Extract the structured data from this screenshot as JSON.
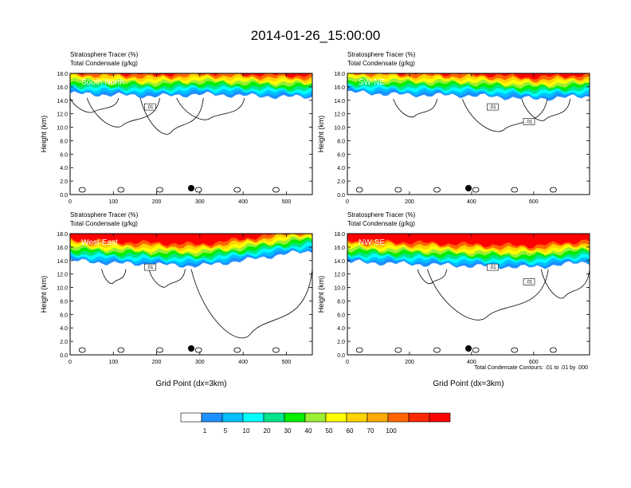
{
  "figure": {
    "title": "2014-01-26_15:00:00",
    "footnote": "Total Condensate Contours: .01 to .01 by .000"
  },
  "colorbar": {
    "labels": [
      "1",
      "5",
      "10",
      "20",
      "30",
      "40",
      "50",
      "60",
      "70",
      "100"
    ],
    "colors": [
      "#ffffff",
      "#1e90ff",
      "#00bfff",
      "#00ffff",
      "#00e58a",
      "#00ee00",
      "#9aee33",
      "#ffff00",
      "#ffd200",
      "#ffaa00",
      "#ff6400",
      "#ff2800",
      "#ff0000"
    ]
  },
  "chart_data": [
    {
      "type": "heatmap",
      "label": "South-North",
      "title_line1": "Stratosphere Tracer   (%)",
      "title_line2": "Total Condensate   (g/kg)",
      "ylabel": "Height (km)",
      "xlabel": "",
      "ylim": [
        0,
        18
      ],
      "xlim": [
        0,
        560
      ],
      "yticks": [
        "0.0",
        "2.0",
        "4.0",
        "6.0",
        "8.0",
        "10.0",
        "12.0",
        "14.0",
        "16.0",
        "18.0"
      ],
      "xticks": [
        0,
        100,
        200,
        300,
        400,
        500
      ],
      "tracer_levels_percent": [
        1,
        5,
        10,
        20,
        30,
        40,
        50,
        60,
        70,
        100
      ],
      "tracer_top_height_km_at_x": [
        [
          0,
          15.0
        ],
        [
          100,
          14.8
        ],
        [
          200,
          14.6
        ],
        [
          300,
          14.9
        ],
        [
          400,
          14.7
        ],
        [
          500,
          14.5
        ],
        [
          560,
          14.5
        ]
      ],
      "contour_labels": [
        ".01"
      ],
      "marker_x": 280
    },
    {
      "type": "heatmap",
      "label": "SW-NE",
      "title_line1": "Stratosphere Tracer   (%)",
      "title_line2": "Total Condensate   (g/kg)",
      "ylabel": "Height (km)",
      "xlabel": "",
      "ylim": [
        0,
        18
      ],
      "xlim": [
        0,
        780
      ],
      "yticks": [
        "0.0",
        "2.0",
        "4.0",
        "6.0",
        "8.0",
        "10.0",
        "12.0",
        "14.0",
        "16.0",
        "18.0"
      ],
      "xticks": [
        0,
        200,
        400,
        600
      ],
      "tracer_levels_percent": [
        1,
        5,
        10,
        20,
        30,
        40,
        50,
        60,
        70,
        100
      ],
      "tracer_top_height_km_at_x": [
        [
          0,
          15.2
        ],
        [
          200,
          14.8
        ],
        [
          400,
          14.7
        ],
        [
          600,
          14.2
        ],
        [
          780,
          14.6
        ]
      ],
      "contour_labels": [
        ".01",
        ".01"
      ],
      "marker_x": 390
    },
    {
      "type": "heatmap",
      "label": "West-East",
      "title_line1": "Stratosphere Tracer   (%)",
      "title_line2": "Total Condensate   (g/kg)",
      "ylabel": "Height (km)",
      "xlabel": "Grid Point (dx=3km)",
      "ylim": [
        0,
        18
      ],
      "xlim": [
        0,
        560
      ],
      "yticks": [
        "0.0",
        "2.0",
        "4.0",
        "6.0",
        "8.0",
        "10.0",
        "12.0",
        "14.0",
        "16.0",
        "18.0"
      ],
      "xticks": [
        0,
        100,
        200,
        300,
        400,
        500
      ],
      "tracer_levels_percent": [
        1,
        5,
        10,
        20,
        30,
        40,
        50,
        60,
        70,
        100
      ],
      "tracer_top_height_km_at_x": [
        [
          0,
          14.0
        ],
        [
          100,
          13.6
        ],
        [
          200,
          13.4
        ],
        [
          300,
          13.2
        ],
        [
          400,
          14.0
        ],
        [
          500,
          15.0
        ],
        [
          560,
          15.4
        ]
      ],
      "contour_labels": [
        ".01"
      ],
      "marker_x": 280
    },
    {
      "type": "heatmap",
      "label": "NW-SE",
      "title_line1": "Stratosphere Tracer   (%)",
      "title_line2": "Total Condensate   (g/kg)",
      "ylabel": "Height (km)",
      "xlabel": "Grid Point (dx=3km)",
      "ylim": [
        0,
        18
      ],
      "xlim": [
        0,
        780
      ],
      "yticks": [
        "0.0",
        "2.0",
        "4.0",
        "6.0",
        "8.0",
        "10.0",
        "12.0",
        "14.0",
        "16.0",
        "18.0"
      ],
      "xticks": [
        0,
        200,
        400,
        600
      ],
      "tracer_levels_percent": [
        1,
        5,
        10,
        20,
        30,
        40,
        50,
        60,
        70,
        100
      ],
      "tracer_top_height_km_at_x": [
        [
          0,
          13.8
        ],
        [
          200,
          13.5
        ],
        [
          400,
          13.2
        ],
        [
          600,
          13.0
        ],
        [
          780,
          13.8
        ]
      ],
      "contour_labels": [
        ".01",
        ".01"
      ],
      "marker_x": 390
    }
  ]
}
